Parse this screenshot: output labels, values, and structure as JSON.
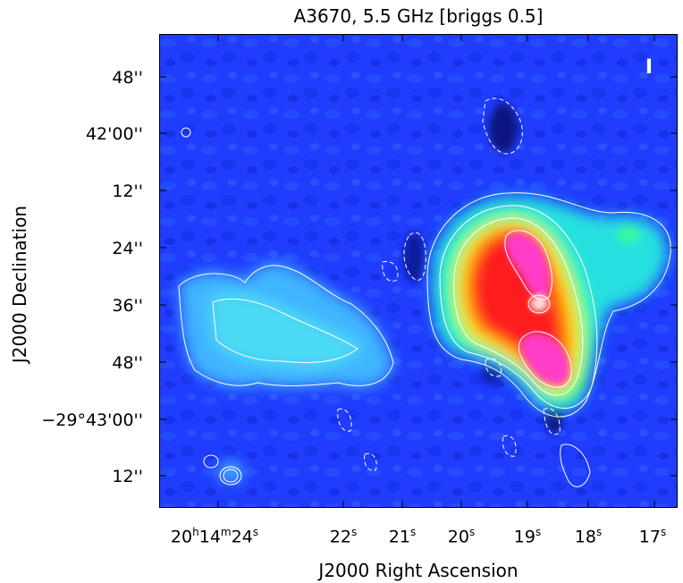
{
  "title": "A3670, 5.5 GHz [briggs 0.5]",
  "stokes_label": "I",
  "axes": {
    "xlabel": "J2000 Right Ascension",
    "ylabel": "J2000 Declination",
    "xticks": [
      {
        "h": "20",
        "hs": "h",
        "m": "14",
        "ms": "m",
        "s": "24",
        "ss": "s"
      },
      {
        "s": "22",
        "ss": "s"
      },
      {
        "s": "21",
        "ss": "s"
      },
      {
        "s": "20",
        "ss": "s"
      },
      {
        "s": "19",
        "ss": "s"
      },
      {
        "s": "18",
        "ss": "s"
      },
      {
        "s": "17",
        "ss": "s"
      }
    ],
    "yticks": [
      "48''",
      "42'00''",
      "12''",
      "24''",
      "36''",
      "48''",
      "−29°43'00''",
      "12''"
    ]
  },
  "colors": {
    "background": "#1f3cff",
    "contour": "#ffffff"
  }
}
